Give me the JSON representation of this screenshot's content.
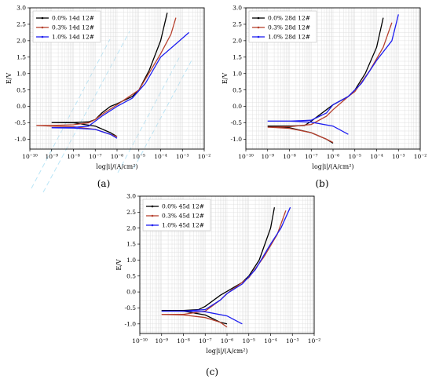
{
  "colors": {
    "black": "#000000",
    "red": "#b7412e",
    "blue": "#1e1ef0"
  },
  "chart_data": [
    {
      "type": "line",
      "panel_label": "(a)",
      "xlabel": "log|i|/(A/cm²)",
      "ylabel": "E/V",
      "x_scale": "log",
      "xlim": [
        1e-10,
        0.01
      ],
      "ylim": [
        -1.3,
        3.0
      ],
      "x_ticks": [
        "10⁻¹⁰",
        "10⁻⁹",
        "10⁻⁸",
        "10⁻⁷",
        "10⁻⁶",
        "10⁻⁵",
        "10⁻⁴",
        "10⁻³",
        "10⁻²"
      ],
      "y_ticks": [
        "-1.0",
        "-0.5",
        "0.0",
        "0.5",
        "1.0",
        "1.5",
        "2.0",
        "2.5",
        "3.0"
      ],
      "legend_position": "top-left",
      "series": [
        {
          "name": "0.0% 14d 12#",
          "color": "#000000",
          "anodic": [
            [
              1e-09,
              -0.49
            ],
            [
              1e-08,
              -0.49
            ],
            [
              5e-08,
              -0.47
            ],
            [
              1e-07,
              -0.4
            ],
            [
              2e-07,
              -0.2
            ],
            [
              5e-07,
              0.0
            ],
            [
              1e-06,
              0.08
            ],
            [
              5e-06,
              0.3
            ],
            [
              1e-05,
              0.5
            ],
            [
              3e-05,
              1.1
            ],
            [
              0.0001,
              2.0
            ],
            [
              0.0002,
              2.85
            ]
          ],
          "cathodic": [
            [
              1e-09,
              -0.49
            ],
            [
              1e-08,
              -0.5
            ],
            [
              1e-07,
              -0.6
            ],
            [
              5e-07,
              -0.8
            ],
            [
              1e-06,
              -0.92
            ]
          ]
        },
        {
          "name": "0.3% 14d 12#",
          "color": "#b7412e",
          "anodic": [
            [
              2e-10,
              -0.58
            ],
            [
              1e-09,
              -0.58
            ],
            [
              1e-08,
              -0.56
            ],
            [
              5e-08,
              -0.5
            ],
            [
              1e-07,
              -0.4
            ],
            [
              2e-07,
              -0.25
            ],
            [
              1e-06,
              0.05
            ],
            [
              1e-05,
              0.5
            ],
            [
              0.0001,
              1.6
            ],
            [
              0.0003,
              2.2
            ],
            [
              0.0005,
              2.7
            ]
          ],
          "cathodic": [
            [
              2e-10,
              -0.58
            ],
            [
              1e-09,
              -0.6
            ],
            [
              1e-08,
              -0.62
            ],
            [
              1e-07,
              -0.7
            ],
            [
              5e-07,
              -0.85
            ],
            [
              1e-06,
              -0.92
            ]
          ]
        },
        {
          "name": "1.0% 14d 12#",
          "color": "#1e1ef0",
          "anodic": [
            [
              1e-09,
              -0.65
            ],
            [
              1e-08,
              -0.64
            ],
            [
              5e-08,
              -0.6
            ],
            [
              1e-07,
              -0.45
            ],
            [
              2e-07,
              -0.3
            ],
            [
              1e-06,
              0.0
            ],
            [
              5e-06,
              0.25
            ],
            [
              2e-05,
              0.7
            ],
            [
              0.0001,
              1.5
            ],
            [
              0.0005,
              1.9
            ],
            [
              0.002,
              2.25
            ]
          ],
          "cathodic": [
            [
              1e-09,
              -0.65
            ],
            [
              1e-08,
              -0.66
            ],
            [
              1e-07,
              -0.7
            ],
            [
              5e-07,
              -0.85
            ],
            [
              1e-06,
              -0.97
            ]
          ]
        }
      ]
    },
    {
      "type": "line",
      "panel_label": "(b)",
      "xlabel": "log|i|/(A/cm²)",
      "ylabel": "E/V",
      "x_scale": "log",
      "xlim": [
        1e-10,
        0.01
      ],
      "ylim": [
        -1.3,
        3.0
      ],
      "x_ticks": [
        "10⁻¹⁰",
        "10⁻⁹",
        "10⁻⁸",
        "10⁻⁷",
        "10⁻⁶",
        "10⁻⁵",
        "10⁻⁴",
        "10⁻³",
        "10⁻²"
      ],
      "y_ticks": [
        "-1.0",
        "-0.5",
        "0.0",
        "0.5",
        "1.0",
        "1.5",
        "2.0",
        "2.5",
        "3.0"
      ],
      "legend_position": "top-left",
      "series": [
        {
          "name": "0.0% 28d 12#",
          "color": "#000000",
          "anodic": [
            [
              1e-09,
              -0.6
            ],
            [
              1e-08,
              -0.6
            ],
            [
              5e-08,
              -0.58
            ],
            [
              1e-07,
              -0.45
            ],
            [
              5e-07,
              -0.1
            ],
            [
              1e-06,
              0.05
            ],
            [
              5e-06,
              0.3
            ],
            [
              1e-05,
              0.5
            ],
            [
              3e-05,
              1.0
            ],
            [
              0.0001,
              1.8
            ],
            [
              0.0002,
              2.7
            ]
          ],
          "cathodic": [
            [
              1e-09,
              -0.6
            ],
            [
              1e-08,
              -0.65
            ],
            [
              1e-07,
              -0.8
            ],
            [
              5e-07,
              -1.0
            ],
            [
              1e-06,
              -1.12
            ]
          ]
        },
        {
          "name": "0.3% 28d 12#",
          "color": "#b7412e",
          "anodic": [
            [
              1e-09,
              -0.63
            ],
            [
              1e-08,
              -0.62
            ],
            [
              1e-07,
              -0.55
            ],
            [
              5e-07,
              -0.3
            ],
            [
              1e-06,
              -0.1
            ],
            [
              5e-06,
              0.3
            ],
            [
              1e-05,
              0.45
            ],
            [
              5e-05,
              1.1
            ],
            [
              0.0002,
              1.8
            ],
            [
              0.0005,
              2.55
            ]
          ],
          "cathodic": [
            [
              1e-09,
              -0.63
            ],
            [
              1e-08,
              -0.67
            ],
            [
              1e-07,
              -0.8
            ],
            [
              5e-07,
              -1.0
            ],
            [
              1e-06,
              -1.1
            ]
          ]
        },
        {
          "name": "1.0% 28d 12#",
          "color": "#1e1ef0",
          "anodic": [
            [
              1e-09,
              -0.45
            ],
            [
              1e-08,
              -0.45
            ],
            [
              1e-07,
              -0.42
            ],
            [
              5e-07,
              -0.2
            ],
            [
              1e-06,
              0.05
            ],
            [
              5e-06,
              0.3
            ],
            [
              2e-05,
              0.7
            ],
            [
              0.0001,
              1.4
            ],
            [
              0.0005,
              2.0
            ],
            [
              0.001,
              2.8
            ]
          ],
          "cathodic": [
            [
              1e-09,
              -0.45
            ],
            [
              1e-08,
              -0.45
            ],
            [
              1e-07,
              -0.48
            ],
            [
              1e-06,
              -0.6
            ],
            [
              5e-06,
              -0.85
            ]
          ]
        }
      ]
    },
    {
      "type": "line",
      "panel_label": "(c)",
      "xlabel": "log|i|/(A/cm²)",
      "ylabel": "E/V",
      "x_scale": "log",
      "xlim": [
        1e-10,
        0.01
      ],
      "ylim": [
        -1.3,
        3.0
      ],
      "x_ticks": [
        "10⁻¹⁰",
        "10⁻⁹",
        "10⁻⁸",
        "10⁻⁷",
        "10⁻⁶",
        "10⁻⁵",
        "10⁻⁴",
        "10⁻³",
        "10⁻²"
      ],
      "y_ticks": [
        "-1.0",
        "-0.5",
        "0.0",
        "0.5",
        "1.0",
        "1.5",
        "2.0",
        "2.5",
        "3.0"
      ],
      "legend_position": "top-left",
      "series": [
        {
          "name": "0.0% 45d 12#",
          "color": "#000000",
          "anodic": [
            [
              1e-09,
              -0.58
            ],
            [
              1e-08,
              -0.58
            ],
            [
              5e-08,
              -0.55
            ],
            [
              1e-07,
              -0.45
            ],
            [
              5e-07,
              -0.1
            ],
            [
              1e-06,
              0.02
            ],
            [
              5e-06,
              0.3
            ],
            [
              1e-05,
              0.5
            ],
            [
              3e-05,
              1.0
            ],
            [
              0.0001,
              2.0
            ],
            [
              0.00015,
              2.65
            ]
          ],
          "cathodic": [
            [
              1e-09,
              -0.58
            ],
            [
              1e-08,
              -0.6
            ],
            [
              1e-07,
              -0.72
            ],
            [
              5e-07,
              -0.95
            ],
            [
              1e-06,
              -1.0
            ]
          ]
        },
        {
          "name": "0.3% 45d 12#",
          "color": "#b7412e",
          "anodic": [
            [
              1e-09,
              -0.7
            ],
            [
              1e-08,
              -0.7
            ],
            [
              1e-07,
              -0.6
            ],
            [
              5e-07,
              -0.25
            ],
            [
              1e-06,
              -0.05
            ],
            [
              5e-06,
              0.3
            ],
            [
              1e-05,
              0.45
            ],
            [
              5e-05,
              1.1
            ],
            [
              0.0002,
              1.8
            ],
            [
              0.0005,
              2.55
            ]
          ],
          "cathodic": [
            [
              1e-09,
              -0.7
            ],
            [
              1e-08,
              -0.72
            ],
            [
              1e-07,
              -0.8
            ],
            [
              5e-07,
              -0.95
            ],
            [
              1e-06,
              -1.1
            ]
          ]
        },
        {
          "name": "1.0% 45d 12#",
          "color": "#1e1ef0",
          "anodic": [
            [
              1e-09,
              -0.6
            ],
            [
              1e-08,
              -0.6
            ],
            [
              1e-07,
              -0.55
            ],
            [
              5e-07,
              -0.25
            ],
            [
              1e-06,
              -0.05
            ],
            [
              5e-06,
              0.25
            ],
            [
              2e-05,
              0.7
            ],
            [
              0.0001,
              1.5
            ],
            [
              0.0003,
              2.0
            ],
            [
              0.0008,
              2.65
            ]
          ],
          "cathodic": [
            [
              1e-09,
              -0.6
            ],
            [
              1e-08,
              -0.6
            ],
            [
              1e-07,
              -0.62
            ],
            [
              1e-06,
              -0.75
            ],
            [
              5e-06,
              -1.0
            ]
          ]
        }
      ]
    }
  ]
}
